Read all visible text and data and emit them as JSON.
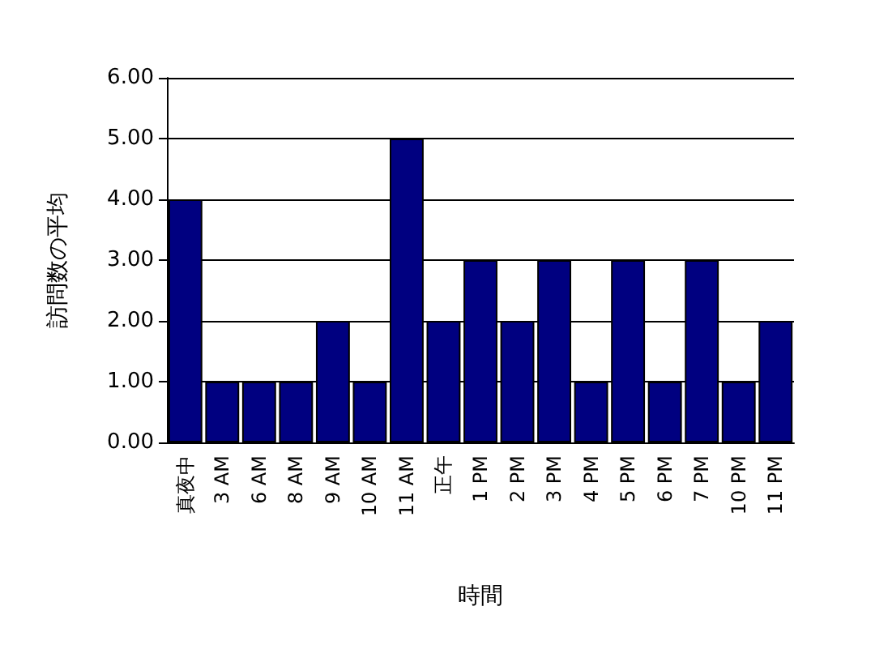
{
  "chart_data": {
    "type": "bar",
    "xlabel": "時間",
    "ylabel": "訪問数の平均",
    "categories": [
      "真夜中",
      "3 AM",
      "6 AM",
      "8 AM",
      "9 AM",
      "10 AM",
      "11 AM",
      "正午",
      "1 PM",
      "2 PM",
      "3 PM",
      "4 PM",
      "5 PM",
      "6 PM",
      "7 PM",
      "10 PM",
      "11 PM"
    ],
    "values": [
      4,
      1,
      1,
      1,
      2,
      1,
      5,
      2,
      3,
      2,
      3,
      1,
      3,
      1,
      3,
      1,
      2
    ],
    "color": "#000080",
    "ylim": [
      0,
      6
    ],
    "yticks": [
      {
        "value": 0,
        "label": "0.00"
      },
      {
        "value": 1,
        "label": "1.00"
      },
      {
        "value": 2,
        "label": "2.00"
      },
      {
        "value": 3,
        "label": "3.00"
      },
      {
        "value": 4,
        "label": "4.00"
      },
      {
        "value": 5,
        "label": "5.00"
      },
      {
        "value": 6,
        "label": "6.00"
      }
    ],
    "grid": "y"
  }
}
